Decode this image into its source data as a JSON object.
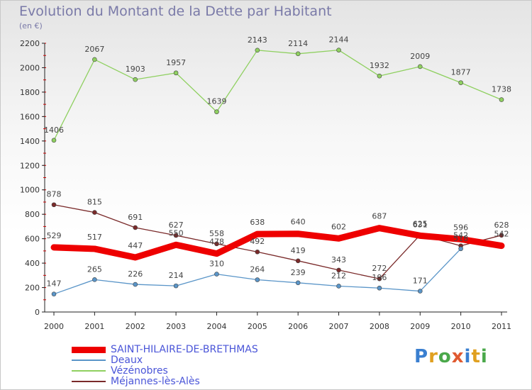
{
  "title": "Evolution du Montant de la Dette par Habitant",
  "subtitle": "(en €)",
  "logo": [
    "P",
    "r",
    "o",
    "x",
    "i",
    "t",
    "i"
  ],
  "logo_colors": [
    "#3a7fd0",
    "#e0a020",
    "#4aa84a",
    "#e05a30",
    "#3a7fd0",
    "#e0a020",
    "#4aa84a"
  ],
  "chart_data": {
    "type": "line",
    "title": "Evolution du Montant de la Dette par Habitant",
    "ylabel": "(en €)",
    "x": [
      "2000",
      "2001",
      "2002",
      "2003",
      "2004",
      "2005",
      "2006",
      "2007",
      "2008",
      "2009",
      "2010",
      "2011"
    ],
    "ylim": [
      0,
      2200
    ],
    "yticks": [
      "0",
      "200",
      "400",
      "600",
      "800",
      "1000",
      "1200",
      "1400",
      "1600",
      "1800",
      "2000",
      "2200"
    ],
    "grid": false,
    "legend_position": "bottom",
    "series": [
      {
        "name": "SAINT-HILAIRE-DE-BRETHMAS",
        "color": "#ee0000",
        "bold": true,
        "values": [
          529,
          517,
          447,
          550,
          478,
          638,
          640,
          602,
          687,
          625,
          596,
          542
        ],
        "labels": [
          "529",
          "517",
          "447",
          "550",
          "478",
          "638",
          "640",
          "602",
          "687",
          "625",
          "596",
          "542"
        ]
      },
      {
        "name": "Deaux",
        "color": "#5a95c8",
        "bold": false,
        "values": [
          147,
          265,
          226,
          214,
          310,
          264,
          239,
          212,
          196,
          171,
          518,
          null
        ],
        "labels": [
          "147",
          "265",
          "226",
          "214",
          "310",
          "264",
          "239",
          "212",
          "196",
          "171",
          "518",
          ""
        ]
      },
      {
        "name": "Vézénobres",
        "color": "#8fd060",
        "bold": false,
        "values": [
          1406,
          2067,
          1903,
          1957,
          1639,
          2143,
          2114,
          2144,
          1932,
          2009,
          1877,
          1738
        ],
        "labels": [
          "1406",
          "2067",
          "1903",
          "1957",
          "1639",
          "2143",
          "2114",
          "2144",
          "1932",
          "2009",
          "1877",
          "1738"
        ]
      },
      {
        "name": "Méjannes-lès-Alès",
        "color": "#7a2a2a",
        "bold": false,
        "values": [
          878,
          815,
          691,
          627,
          558,
          492,
          419,
          343,
          272,
          631,
          542,
          628
        ],
        "labels": [
          "878",
          "815",
          "691",
          "627",
          "558",
          "492",
          "419",
          "343",
          "272",
          "631",
          "542",
          "628"
        ]
      }
    ]
  }
}
